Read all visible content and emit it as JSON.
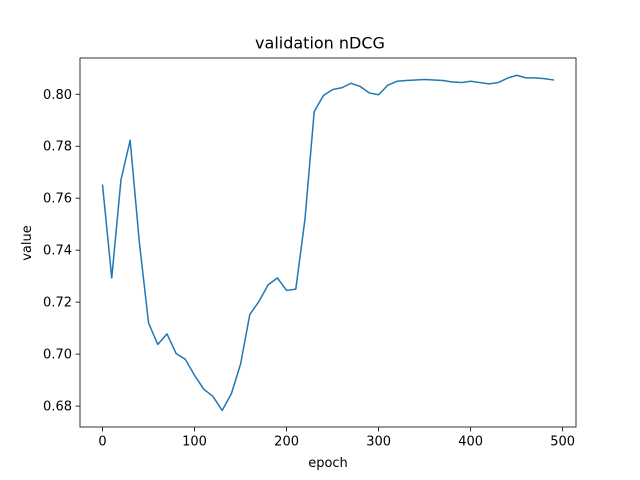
{
  "chart_data": {
    "type": "line",
    "title": "validation nDCG",
    "xlabel": "epoch",
    "ylabel": "value",
    "xlim": [
      -24.5,
      514.5
    ],
    "ylim": [
      0.67195,
      0.81395
    ],
    "xticks": [
      0,
      100,
      200,
      300,
      400,
      500
    ],
    "xtick_labels": [
      "0",
      "100",
      "200",
      "300",
      "400",
      "500"
    ],
    "yticks": [
      0.68,
      0.7,
      0.72,
      0.74,
      0.76,
      0.78,
      0.8
    ],
    "ytick_labels": [
      "0.68",
      "0.70",
      "0.72",
      "0.74",
      "0.76",
      "0.78",
      "0.80"
    ],
    "grid": false,
    "series": [
      {
        "color": "#1f77b4",
        "x": [
          0,
          10,
          20,
          30,
          40,
          50,
          60,
          70,
          80,
          90,
          100,
          110,
          120,
          130,
          140,
          150,
          160,
          170,
          180,
          190,
          200,
          210,
          220,
          230,
          240,
          250,
          260,
          270,
          280,
          290,
          300,
          310,
          320,
          330,
          340,
          350,
          360,
          370,
          380,
          390,
          400,
          410,
          420,
          430,
          440,
          450,
          460,
          470,
          480,
          490
        ],
        "y": [
          0.765,
          0.7293,
          0.767,
          0.7823,
          0.743,
          0.712,
          0.7037,
          0.7078,
          0.7002,
          0.698,
          0.6918,
          0.6865,
          0.6837,
          0.6783,
          0.6848,
          0.6962,
          0.7152,
          0.7203,
          0.7267,
          0.7293,
          0.7245,
          0.725,
          0.752,
          0.7933,
          0.7995,
          0.8018,
          0.8025,
          0.8042,
          0.803,
          0.8005,
          0.7998,
          0.8035,
          0.805,
          0.8053,
          0.8055,
          0.8057,
          0.8055,
          0.8053,
          0.8047,
          0.8045,
          0.805,
          0.8045,
          0.804,
          0.8045,
          0.8062,
          0.8073,
          0.8063,
          0.8063,
          0.806,
          0.8055
        ]
      }
    ]
  }
}
